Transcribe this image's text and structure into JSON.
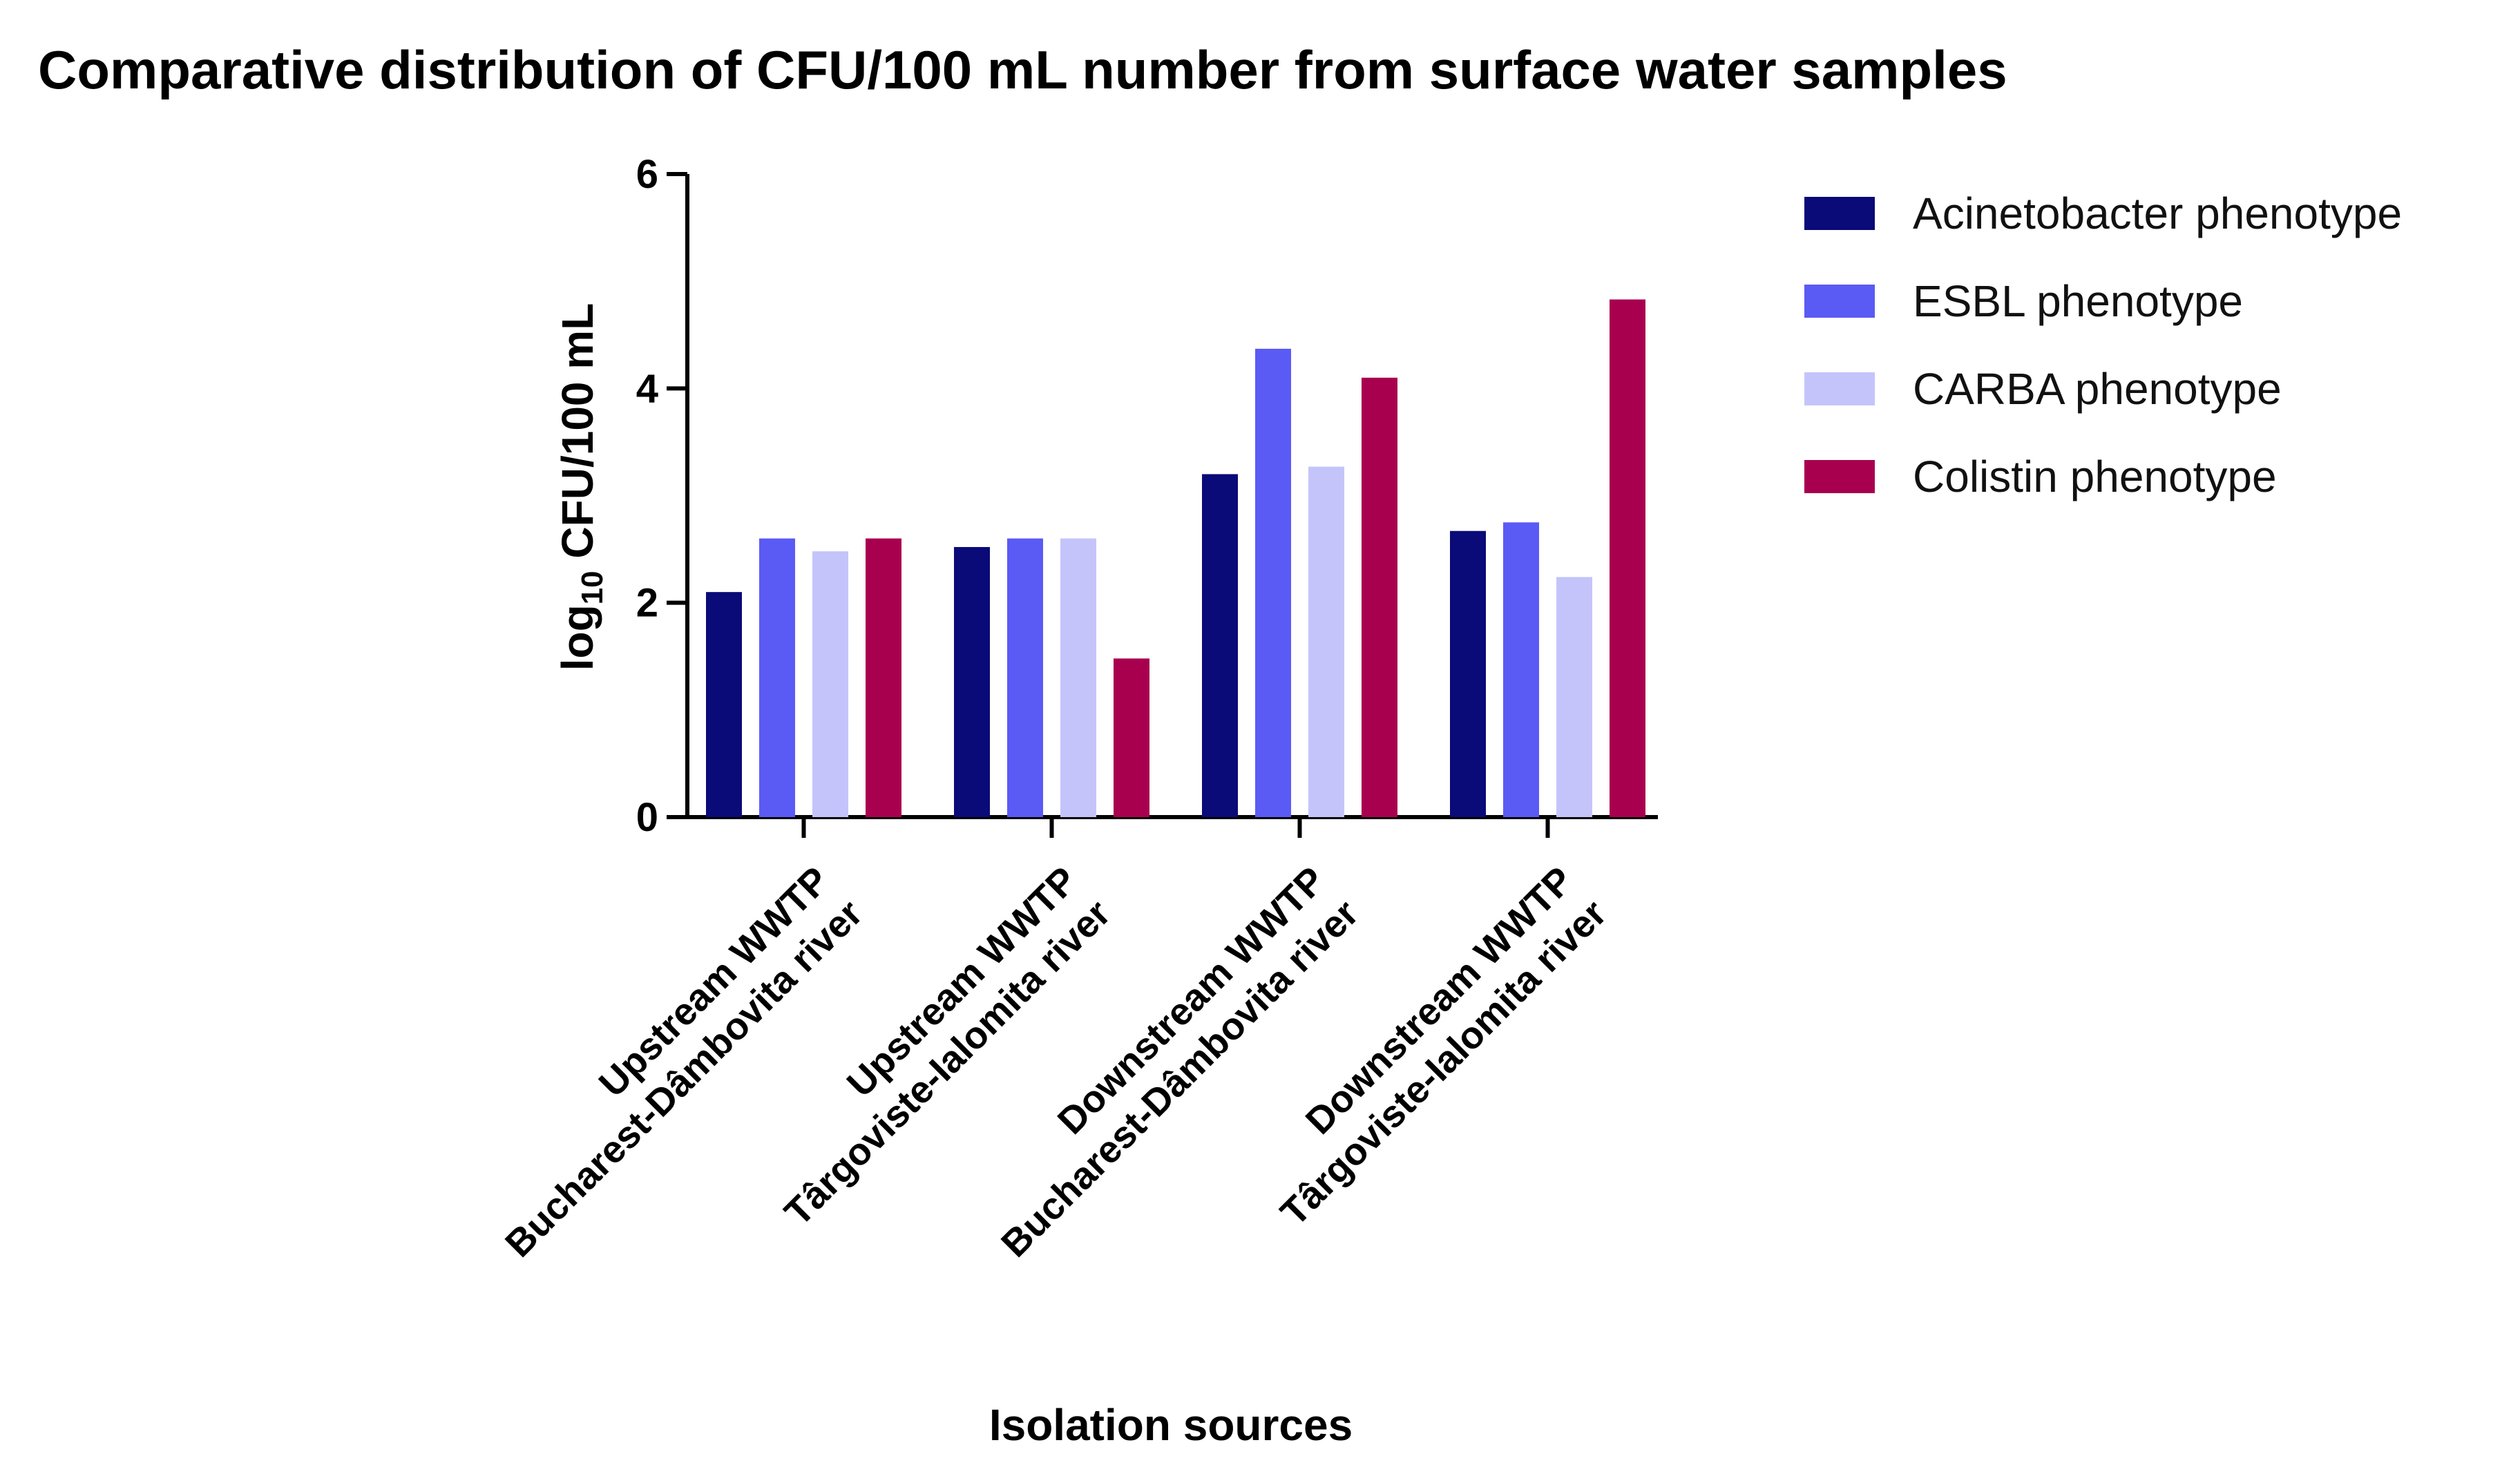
{
  "chart_data": {
    "type": "bar",
    "title": "Comparative distribution of CFU/100 mL number from surface water samples",
    "xlabel": "Isolation sources",
    "ylabel_prefix": "log",
    "ylabel_subscript": "10",
    "ylabel_suffix": " CFU/100 mL",
    "ylim": [
      0,
      6
    ],
    "yticks": [
      "0",
      "2",
      "4",
      "6"
    ],
    "categories": [
      {
        "line1": "Upstream WWTP",
        "line2": "Bucharest-Dâmbovita river"
      },
      {
        "line1": "Upstream WWTP",
        "line2": "Târgoviste-Ialomita river"
      },
      {
        "line1": "Downstream WWTP",
        "line2": "Bucharest-Dâmbovita river"
      },
      {
        "line1": "Downstream WWTP",
        "line2": "Târgoviste-Ialomita river"
      }
    ],
    "series": [
      {
        "name": "Acinetobacter phenotype",
        "color": "#0a0a78",
        "values": [
          2.1,
          2.52,
          3.2,
          2.67
        ]
      },
      {
        "name": "ESBL phenotype",
        "color": "#5a5af5",
        "values": [
          2.6,
          2.6,
          4.37,
          2.75
        ]
      },
      {
        "name": "CARBA phenotype",
        "color": "#c4c4fb",
        "values": [
          2.48,
          2.6,
          3.27,
          2.24
        ]
      },
      {
        "name": "Colistin phenotype",
        "color": "#a8004e",
        "values": [
          2.6,
          1.48,
          4.1,
          4.83
        ]
      }
    ],
    "legend_position": "top-right",
    "grid": false
  }
}
